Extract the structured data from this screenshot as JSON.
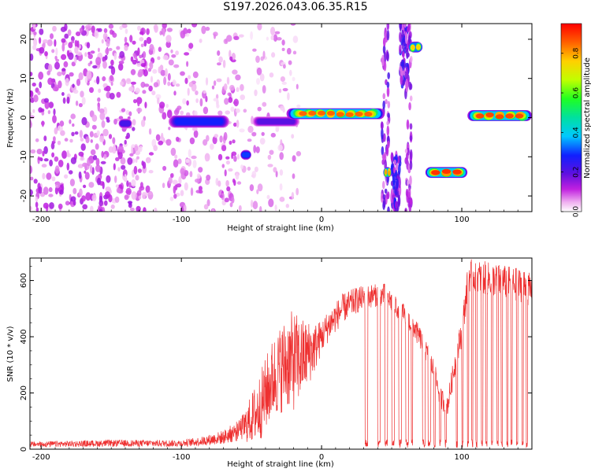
{
  "page": {
    "title": "S197.2026.043.06.35.R15"
  },
  "colors": {
    "snr_line": "#ee3030",
    "axis": "#000000",
    "background": "#ffffff"
  },
  "chart_data": [
    {
      "type": "heatmap",
      "title": "S197.2026.043.06.35.R15",
      "xlabel": "Height of straight line (km)",
      "ylabel": "Frequency (Hz)",
      "xlim": [
        -208,
        150
      ],
      "ylim": [
        -24,
        24
      ],
      "xticks": [
        -200,
        -100,
        0,
        100
      ],
      "yticks": [
        -20,
        -10,
        0,
        10,
        20
      ],
      "colorbar": {
        "label": "Normalized spectral amplitude",
        "range": [
          0,
          0.95
        ],
        "ticks": [
          0.0,
          0.2,
          0.4,
          0.6,
          0.8
        ],
        "colormap": "rainbow (white-magenta-purple-blue-cyan-green-yellow-orange-red)"
      },
      "noise_regions": [
        {
          "x_range": [
            -208,
            -125
          ],
          "freq_range": [
            -24,
            24
          ],
          "density": "high",
          "amplitude": 0.05
        },
        {
          "x_range": [
            -125,
            -60
          ],
          "freq_range": [
            -24,
            24
          ],
          "density": "medium",
          "amplitude": 0.04
        },
        {
          "x_range": [
            -60,
            -15
          ],
          "freq_range": [
            -24,
            24
          ],
          "density": "low",
          "amplitude": 0.03
        }
      ],
      "features": [
        {
          "x_range": [
            -145,
            -135
          ],
          "freq_center": -1.5,
          "width_hz": 2,
          "amplitude": 0.22
        },
        {
          "x_range": [
            -110,
            -65
          ],
          "freq_center": -1,
          "width_hz": 2.5,
          "amplitude": 0.28
        },
        {
          "x_range": [
            -58,
            -50
          ],
          "freq_center": -9.5,
          "width_hz": 2,
          "amplitude": 0.3
        },
        {
          "x_range": [
            -50,
            -15
          ],
          "freq_center": -1,
          "width_hz": 2,
          "amplitude": 0.2
        },
        {
          "x_range": [
            -25,
            45
          ],
          "freq_center": 1,
          "width_hz": 2,
          "amplitude": 0.85
        },
        {
          "x_range": [
            44,
            50
          ],
          "freq_center": -14,
          "width_hz": 2,
          "amplitude": 0.8
        },
        {
          "x_range": [
            62,
            72
          ],
          "freq_center": 18,
          "width_hz": 2,
          "amplitude": 0.75
        },
        {
          "x_range": [
            74,
            104
          ],
          "freq_center": -14,
          "width_hz": 2,
          "amplitude": 0.9
        },
        {
          "x_range": [
            104,
            150
          ],
          "freq_center": 0.5,
          "width_hz": 2,
          "amplitude": 0.88
        }
      ],
      "streaks": [
        {
          "x_range": [
            43,
            48
          ],
          "freq_range": [
            -24,
            24
          ],
          "amplitude": 0.1
        },
        {
          "x_range": [
            50,
            56
          ],
          "freq_range": [
            -24,
            -10
          ],
          "amplitude": 0.12
        },
        {
          "x_range": [
            56,
            62
          ],
          "freq_range": [
            8,
            24
          ],
          "amplitude": 0.12
        },
        {
          "x_range": [
            60,
            64
          ],
          "freq_range": [
            -24,
            24
          ],
          "amplitude": 0.08
        }
      ]
    },
    {
      "type": "line",
      "xlabel": "Height of straight line (km)",
      "ylabel": "SNR (10 * v/v)",
      "xlim": [
        -208,
        150
      ],
      "ylim": [
        0,
        680
      ],
      "xticks": [
        -200,
        -100,
        0,
        100
      ],
      "yticks": [
        0,
        200,
        400,
        600
      ],
      "series": [
        {
          "color": "#ee3030",
          "envelope": [
            [
              -208,
              18
            ],
            [
              -150,
              22
            ],
            [
              -100,
              22
            ],
            [
              -85,
              30
            ],
            [
              -70,
              45
            ],
            [
              -55,
              80
            ],
            [
              -45,
              140
            ],
            [
              -35,
              250
            ],
            [
              -25,
              310
            ],
            [
              -15,
              320
            ],
            [
              -5,
              360
            ],
            [
              5,
              440
            ],
            [
              15,
              500
            ],
            [
              25,
              530
            ],
            [
              35,
              545
            ],
            [
              45,
              550
            ],
            [
              55,
              500
            ],
            [
              65,
              440
            ],
            [
              72,
              380
            ],
            [
              80,
              280
            ],
            [
              85,
              180
            ],
            [
              90,
              160
            ],
            [
              95,
              300
            ],
            [
              100,
              420
            ],
            [
              105,
              620
            ],
            [
              115,
              610
            ],
            [
              125,
              600
            ],
            [
              135,
              590
            ],
            [
              145,
              580
            ],
            [
              150,
              560
            ]
          ],
          "noise_amplitude": [
            [
              -208,
              15
            ],
            [
              -60,
              25
            ],
            [
              -45,
              120
            ],
            [
              -20,
              180
            ],
            [
              0,
              60
            ],
            [
              40,
              40
            ],
            [
              90,
              40
            ],
            [
              105,
              60
            ],
            [
              150,
              60
            ]
          ],
          "dropouts": [
            [
              31,
              33
            ],
            [
              40,
              42
            ],
            [
              45,
              47
            ],
            [
              50,
              52
            ],
            [
              55,
              57
            ],
            [
              60,
              62
            ],
            [
              64,
              65
            ],
            [
              72,
              74
            ],
            [
              76,
              78
            ],
            [
              80,
              81
            ],
            [
              84,
              85
            ],
            [
              88,
              89
            ],
            [
              96,
              97
            ],
            [
              100,
              101
            ],
            [
              104,
              105
            ],
            [
              107,
              108
            ],
            [
              110,
              111
            ],
            [
              114,
              115
            ],
            [
              117,
              118
            ],
            [
              121,
              122
            ],
            [
              125,
              126
            ],
            [
              128,
              129
            ],
            [
              132,
              133
            ],
            [
              135,
              136
            ],
            [
              139,
              140
            ],
            [
              143,
              144
            ],
            [
              146,
              147
            ]
          ]
        }
      ]
    }
  ]
}
